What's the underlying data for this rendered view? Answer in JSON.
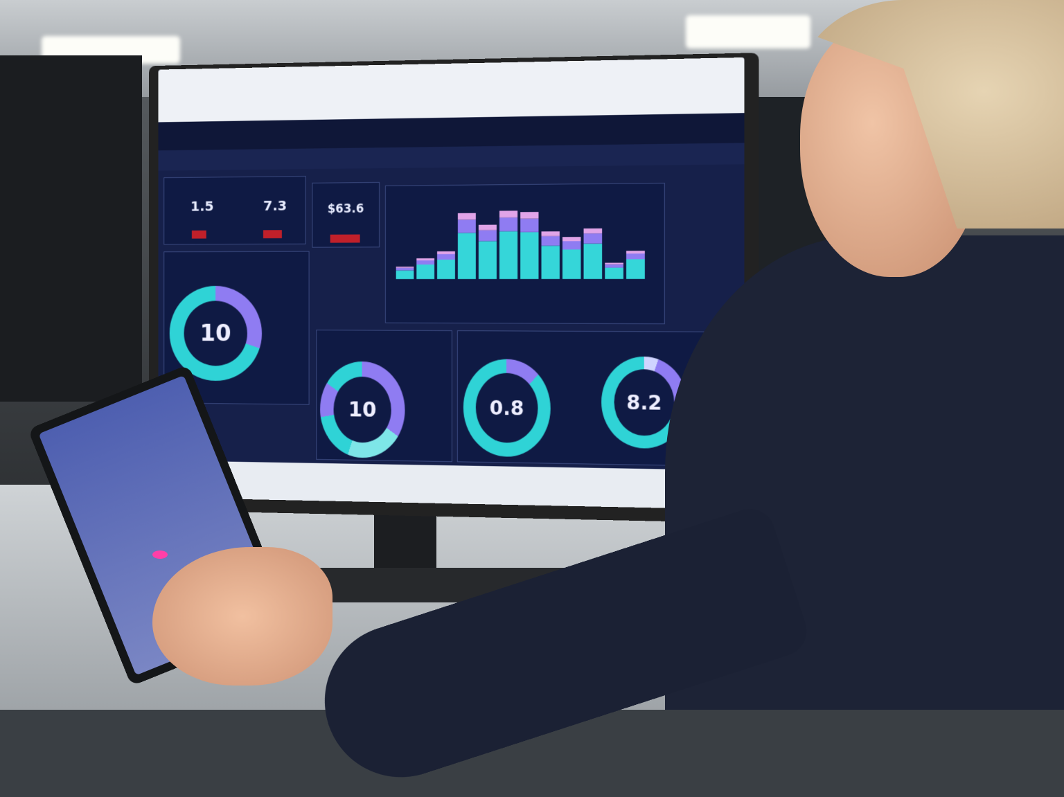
{
  "dashboard": {
    "kpi_1": {
      "left_value": "1.5",
      "right_value": "7.3"
    },
    "kpi_2": {
      "value": "$63.6"
    },
    "bar_chart": {
      "type": "bar",
      "stacked": true,
      "values": [
        18,
        30,
        40,
        95,
        78,
        98,
        96,
        68,
        60,
        72,
        23,
        40
      ],
      "colors": [
        "#35d6d9",
        "#8f7cf2",
        "#e0a4e8"
      ]
    },
    "donut_1": {
      "value": "10"
    },
    "donut_2": {
      "value": "10"
    },
    "donut_3": {
      "value": "0.8"
    },
    "donut_4": {
      "value": "8.2"
    },
    "colors": {
      "primary": "#2fd3d6",
      "secondary": "#8f7cf2",
      "background": "#16204a",
      "alert": "#c0202a"
    }
  }
}
